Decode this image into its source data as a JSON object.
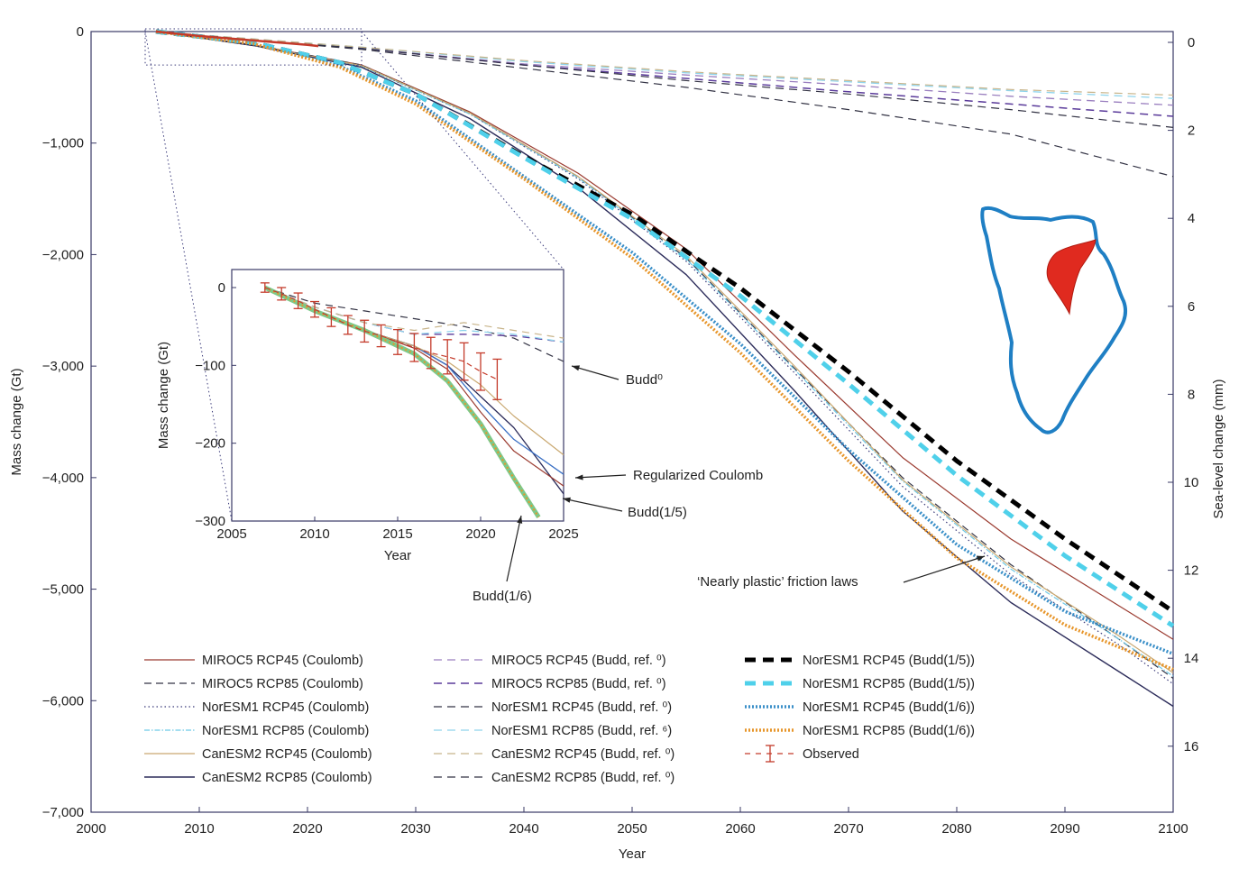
{
  "chart_data": [
    {
      "type": "line",
      "xlabel": "Year",
      "ylabel": "Mass change (Gt)",
      "y2label": "Sea-level change (mm)",
      "xlim": [
        2000,
        2100
      ],
      "ylim": [
        -7000,
        0
      ],
      "y2lim": [
        0,
        17.5
      ],
      "x_ticks": [
        "2000",
        "2010",
        "2020",
        "2030",
        "2040",
        "2050",
        "2060",
        "2070",
        "2080",
        "2090",
        "2100"
      ],
      "y_ticks": [
        {
          "v": 0,
          "t": "0"
        },
        {
          "v": -1000,
          "t": "−1,000"
        },
        {
          "v": -2000,
          "t": "−2,000"
        },
        {
          "v": -3000,
          "t": "−3,000"
        },
        {
          "v": -4000,
          "t": "−4,000"
        },
        {
          "v": -5000,
          "t": "−5,000"
        },
        {
          "v": -6000,
          "t": "−6,000"
        },
        {
          "v": -7000,
          "t": "−7,000"
        }
      ],
      "y2_ticks": [
        "0",
        "2",
        "4",
        "6",
        "8",
        "10",
        "12",
        "14",
        "16"
      ],
      "grid": false,
      "legend_position": "bottom-left",
      "series": [
        {
          "name": "MIROC5 RCP45 (Coulomb)",
          "color": "#9b3b30",
          "dash": "solid",
          "width": 1.2,
          "x": [
            2006,
            2015,
            2025,
            2035,
            2045,
            2055,
            2065,
            2075,
            2085,
            2095,
            2100
          ],
          "y": [
            0,
            -120,
            -300,
            -720,
            -1270,
            -1950,
            -2900,
            -3820,
            -4550,
            -5150,
            -5450
          ]
        },
        {
          "name": "MIROC5 RCP85 (Coulomb)",
          "color": "#333344",
          "dash": "8,5",
          "width": 1.2,
          "x": [
            2006,
            2015,
            2025,
            2035,
            2045,
            2055,
            2065,
            2075,
            2085,
            2095,
            2100
          ],
          "y": [
            0,
            -120,
            -300,
            -730,
            -1300,
            -2030,
            -3020,
            -4000,
            -4780,
            -5450,
            -5800
          ]
        },
        {
          "name": "NorESM1 RCP45 (Coulomb)",
          "color": "#3a3a7a",
          "dash": "1.5,3",
          "width": 1.2,
          "x": [
            2006,
            2015,
            2025,
            2035,
            2045,
            2055,
            2065,
            2075,
            2085,
            2095,
            2100
          ],
          "y": [
            0,
            -125,
            -310,
            -740,
            -1320,
            -2060,
            -3060,
            -4080,
            -4870,
            -5500,
            -5850
          ]
        },
        {
          "name": "NorESM1 RCP85 (Coulomb)",
          "color": "#6ec9e6",
          "dash": "6,2,1.5,2",
          "width": 1.2,
          "x": [
            2006,
            2015,
            2025,
            2035,
            2045,
            2055,
            2065,
            2075,
            2085,
            2095,
            2100
          ],
          "y": [
            0,
            -125,
            -310,
            -740,
            -1310,
            -2040,
            -3030,
            -4030,
            -4820,
            -5450,
            -5780
          ]
        },
        {
          "name": "CanESM2 RCP45 (Coulomb)",
          "color": "#c9a870",
          "dash": "solid",
          "width": 1.2,
          "x": [
            2006,
            2015,
            2025,
            2035,
            2045,
            2055,
            2065,
            2075,
            2085,
            2095,
            2100
          ],
          "y": [
            0,
            -125,
            -305,
            -730,
            -1300,
            -2010,
            -3000,
            -4020,
            -4800,
            -5420,
            -5750
          ]
        },
        {
          "name": "CanESM2 RCP85 (Coulomb)",
          "color": "#2c2c5a",
          "dash": "solid",
          "width": 1.4,
          "x": [
            2006,
            2015,
            2025,
            2035,
            2045,
            2055,
            2065,
            2075,
            2085,
            2095,
            2100
          ],
          "y": [
            0,
            -125,
            -320,
            -780,
            -1400,
            -2180,
            -3220,
            -4300,
            -5120,
            -5740,
            -6050
          ]
        },
        {
          "name": "MIROC5 RCP45 (Budd, ref. ⁰)",
          "color": "#9a7fbf",
          "dash": "9,6",
          "width": 1.3,
          "x": [
            2006,
            2025,
            2040,
            2055,
            2070,
            2085,
            2100
          ],
          "y": [
            0,
            -150,
            -290,
            -390,
            -480,
            -580,
            -660
          ]
        },
        {
          "name": "MIROC5 RCP85 (Budd, ref. ⁰)",
          "color": "#5a3a9a",
          "dash": "9,6",
          "width": 1.5,
          "x": [
            2006,
            2025,
            2040,
            2055,
            2070,
            2085,
            2100
          ],
          "y": [
            0,
            -150,
            -300,
            -420,
            -540,
            -650,
            -760
          ]
        },
        {
          "name": "NorESM1 RCP45 (Budd, ref. ⁰)",
          "color": "#333344",
          "dash": "9,6",
          "width": 1.2,
          "x": [
            2006,
            2025,
            2040,
            2055,
            2070,
            2085,
            2100
          ],
          "y": [
            0,
            -150,
            -300,
            -440,
            -560,
            -700,
            -860
          ]
        },
        {
          "name": "NorESM1 RCP85 (Budd, ref. ⁶)",
          "color": "#8fd4ec",
          "dash": "9,6",
          "width": 1.3,
          "x": [
            2006,
            2025,
            2040,
            2055,
            2070,
            2085,
            2100
          ],
          "y": [
            0,
            -140,
            -270,
            -370,
            -450,
            -530,
            -600
          ]
        },
        {
          "name": "CanESM2 RCP45 (Budd, ref. ⁰)",
          "color": "#c8b48a",
          "dash": "9,6",
          "width": 1.2,
          "x": [
            2006,
            2025,
            2040,
            2055,
            2070,
            2085,
            2100
          ],
          "y": [
            0,
            -140,
            -260,
            -360,
            -440,
            -520,
            -570
          ]
        },
        {
          "name": "CanESM2 RCP85 (Budd, ref. ⁰)",
          "color": "#333344",
          "dash": "9,6",
          "width": 1.2,
          "x": [
            2006,
            2025,
            2040,
            2055,
            2070,
            2085,
            2100
          ],
          "y": [
            0,
            -160,
            -330,
            -500,
            -700,
            -920,
            -1300
          ]
        },
        {
          "name": "NorESM1 RCP45 (Budd(1/5))",
          "color": "#000000",
          "dash": "12,8",
          "width": 5,
          "x": [
            2006,
            2015,
            2023,
            2030,
            2040,
            2050,
            2060,
            2070,
            2080,
            2090,
            2100
          ],
          "y": [
            0,
            -100,
            -280,
            -560,
            -1120,
            -1640,
            -2300,
            -3050,
            -3850,
            -4550,
            -5200
          ]
        },
        {
          "name": "NorESM1 RCP85 (Budd(1/5))",
          "color": "#4fd0ea",
          "dash": "12,8",
          "width": 5,
          "x": [
            2006,
            2015,
            2023,
            2030,
            2040,
            2050,
            2060,
            2070,
            2080,
            2090,
            2100
          ],
          "y": [
            0,
            -100,
            -280,
            -560,
            -1130,
            -1680,
            -2370,
            -3160,
            -3980,
            -4700,
            -5330
          ]
        },
        {
          "name": "NorESM1 RCP45 (Budd(1/6))",
          "color": "#3a8fc8",
          "dash": "2,2",
          "width": 3.5,
          "x": [
            2006,
            2015,
            2023,
            2030,
            2040,
            2050,
            2060,
            2070,
            2080,
            2090,
            2100
          ],
          "y": [
            0,
            -110,
            -310,
            -620,
            -1300,
            -1980,
            -2800,
            -3750,
            -4600,
            -5200,
            -5580
          ]
        },
        {
          "name": "NorESM1 RCP85 (Budd(1/6))",
          "color": "#e7962b",
          "dash": "2,2",
          "width": 3.5,
          "x": [
            2006,
            2015,
            2023,
            2030,
            2040,
            2050,
            2060,
            2070,
            2080,
            2090,
            2100
          ],
          "y": [
            0,
            -110,
            -320,
            -650,
            -1320,
            -2030,
            -2880,
            -3850,
            -4720,
            -5320,
            -5720
          ]
        },
        {
          "name": "Observed",
          "color": "#c43a2a",
          "dash": "solid",
          "width": 2.5,
          "x": [
            2006,
            2010,
            2015,
            2020,
            2021
          ],
          "y": [
            0,
            -40,
            -80,
            -120,
            -130
          ]
        }
      ]
    },
    {
      "type": "line",
      "inset": true,
      "xlabel": "Year",
      "ylabel": "Mass change (Gt)",
      "xlim": [
        2005,
        2025
      ],
      "ylim": [
        -300,
        0
      ],
      "x_ticks": [
        "2005",
        "2010",
        "2015",
        "2020",
        "2025"
      ],
      "y_ticks": [
        {
          "v": 0,
          "t": "0"
        },
        {
          "v": -100,
          "t": "−100"
        },
        {
          "v": -200,
          "t": "−200"
        },
        {
          "v": -300,
          "t": "−300"
        }
      ],
      "series": [
        {
          "name": "Budd⁰ dark",
          "color": "#333344",
          "dash": "8,6",
          "width": 1.2,
          "x": [
            2007,
            2010,
            2013,
            2016,
            2019,
            2022,
            2025
          ],
          "y": [
            0,
            -20,
            -30,
            -40,
            -50,
            -65,
            -95
          ]
        },
        {
          "name": "Budd⁰ purple",
          "color": "#5a3a9a",
          "dash": "8,6",
          "width": 1.3,
          "x": [
            2007,
            2010,
            2013,
            2016,
            2019,
            2022,
            2025
          ],
          "y": [
            0,
            -25,
            -45,
            -60,
            -60,
            -62,
            -70
          ]
        },
        {
          "name": "Budd⁰ light blue",
          "color": "#8fd4ec",
          "dash": "8,6",
          "width": 1.3,
          "x": [
            2007,
            2010,
            2013,
            2016,
            2019,
            2022,
            2025
          ],
          "y": [
            0,
            -25,
            -45,
            -60,
            -55,
            -60,
            -70
          ]
        },
        {
          "name": "Budd⁰ tan",
          "color": "#c8b48a",
          "dash": "8,6",
          "width": 1.2,
          "x": [
            2007,
            2010,
            2013,
            2016,
            2019,
            2022,
            2025
          ],
          "y": [
            0,
            -25,
            -45,
            -55,
            -45,
            -55,
            -65
          ]
        },
        {
          "name": "Coulomb 1",
          "color": "#2c2c5a",
          "dash": "solid",
          "width": 1.3,
          "x": [
            2007,
            2010,
            2013,
            2016,
            2018,
            2020,
            2022,
            2025
          ],
          "y": [
            0,
            -30,
            -55,
            -75,
            -100,
            -140,
            -180,
            -265
          ]
        },
        {
          "name": "Coulomb 2",
          "color": "#3a6fc4",
          "dash": "solid",
          "width": 1.3,
          "x": [
            2007,
            2010,
            2013,
            2016,
            2018,
            2020,
            2022,
            2025
          ],
          "y": [
            0,
            -30,
            -55,
            -75,
            -100,
            -150,
            -195,
            -240
          ]
        },
        {
          "name": "Coulomb 3",
          "color": "#9b3b30",
          "dash": "solid",
          "width": 1.2,
          "x": [
            2007,
            2010,
            2013,
            2016,
            2018,
            2020,
            2022,
            2025
          ],
          "y": [
            0,
            -30,
            -55,
            -78,
            -105,
            -160,
            -210,
            -255
          ]
        },
        {
          "name": "Coulomb 4",
          "color": "#c9a870",
          "dash": "solid",
          "width": 1.2,
          "x": [
            2007,
            2010,
            2013,
            2016,
            2018,
            2020,
            2022,
            2025
          ],
          "y": [
            0,
            -30,
            -55,
            -75,
            -95,
            -125,
            -165,
            -215
          ]
        },
        {
          "name": "Budd(1/5) green",
          "color": "#7cc98a",
          "dash": "solid",
          "width": 5,
          "x": [
            2007,
            2010,
            2013,
            2016,
            2018,
            2020,
            2022,
            2023.5
          ],
          "y": [
            0,
            -30,
            -55,
            -85,
            -120,
            -175,
            -245,
            -295
          ]
        },
        {
          "name": "Budd(1/6) orange",
          "color": "#e7962b",
          "dash": "2,3",
          "width": 2,
          "x": [
            2007,
            2010,
            2013,
            2016,
            2018,
            2020,
            2022,
            2023.5
          ],
          "y": [
            0,
            -30,
            -55,
            -85,
            -120,
            -175,
            -245,
            -295
          ]
        }
      ],
      "observed_errorbars": {
        "color": "#c43a2a",
        "x": [
          2007,
          2008,
          2009,
          2010,
          2011,
          2012,
          2013,
          2014,
          2015,
          2016,
          2017,
          2018,
          2019,
          2020,
          2021
        ],
        "y": [
          0,
          -8,
          -17,
          -28,
          -38,
          -48,
          -56,
          -62,
          -70,
          -77,
          -84,
          -89,
          -95,
          -108,
          -118
        ],
        "err": [
          6,
          8,
          10,
          10,
          12,
          12,
          14,
          14,
          16,
          18,
          20,
          22,
          24,
          24,
          26
        ]
      }
    }
  ],
  "legend": {
    "col1": [
      "MIROC5 RCP45 (Coulomb)",
      "MIROC5 RCP85 (Coulomb)",
      "NorESM1 RCP45 (Coulomb)",
      "NorESM1 RCP85 (Coulomb)",
      "CanESM2 RCP45 (Coulomb)",
      "CanESM2 RCP85 (Coulomb)"
    ],
    "col2": [
      "MIROC5 RCP45 (Budd, ref. ⁰)",
      "MIROC5 RCP85 (Budd, ref. ⁰)",
      "NorESM1 RCP45 (Budd, ref. ⁰)",
      "NorESM1 RCP85 (Budd, ref. ⁶)",
      "CanESM2 RCP45 (Budd, ref. ⁰)",
      "CanESM2 RCP85 (Budd, ref. ⁰)"
    ],
    "col3": [
      "NorESM1 RCP45 (Budd(1/5))",
      "NorESM1 RCP85 (Budd(1/5))",
      "NorESM1 RCP45 (Budd(1/6))",
      "NorESM1 RCP85 (Budd(1/6))",
      "Observed"
    ]
  },
  "annotations": {
    "budd0": "Budd⁰",
    "regularized_coulomb": "Regularized Coulomb",
    "budd15": "Budd(1/5)",
    "budd16": "Budd(1/6)",
    "nearly_plastic": "‘Nearly plastic’ friction laws"
  },
  "map": {
    "icon": "greenland-map-icon",
    "outline_color": "#1f7fc4",
    "highlight_color": "#e02a1f"
  }
}
